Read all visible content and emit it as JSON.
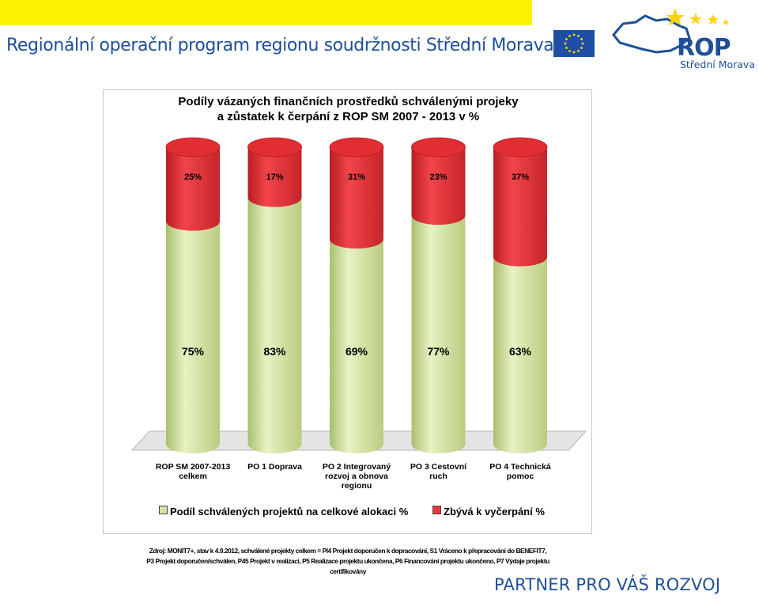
{
  "header": {
    "program_title": "Regionální operační program regionu soudržnosti Střední Morava",
    "logo_text": "ROP",
    "logo_region": "Střední Morava"
  },
  "chart_data": {
    "type": "bar",
    "stacked": true,
    "title_lines": [
      "Podíly vázaných finančních prostředků schválenými projeky",
      "a zůstatek k čerpání z ROP SM 2007 - 2013 v %"
    ],
    "categories": [
      [
        "ROP SM 2007-2013",
        "celkem"
      ],
      [
        "PO 1 Doprava"
      ],
      [
        "PO 2 Integrovaný",
        "rozvoj a obnova",
        "regionu"
      ],
      [
        "PO 3 Cestovní",
        "ruch"
      ],
      [
        "PO 4 Technická",
        "pomoc"
      ]
    ],
    "series": [
      {
        "name": "Podíl schválených projektů na celkové alokaci %",
        "color": "#d5e3a5",
        "values": [
          75,
          83,
          69,
          77,
          63
        ],
        "labels": [
          "75%",
          "83%",
          "69%",
          "77%",
          "63%"
        ]
      },
      {
        "name": "Zbývá k vyčerpání %",
        "color": "#e8383d",
        "values": [
          25,
          17,
          31,
          23,
          37
        ],
        "labels": [
          "25%",
          "17%",
          "31%",
          "23%",
          "37%"
        ]
      }
    ],
    "ylim": [
      0,
      100
    ],
    "legend_position": "bottom",
    "grid": false
  },
  "source_note": {
    "lines": [
      "Zdroj: MONIT7+, stav k 4.9.2012,  schválené projekty celkem = PI4 Projekt doporučen k dopracování, S1 Vráceno k přepracování do BENEFIT7,",
      "P3 Projekt doporučen/schválen, P45 Projekt v realizaci, P5 Realizace projektu ukončena, P6 Financování projektu ukončeno, P7 Výdaje projektu",
      "certifikovány"
    ]
  },
  "footer": {
    "slogan": "PARTNER PRO VÁŠ ROZVOJ"
  }
}
